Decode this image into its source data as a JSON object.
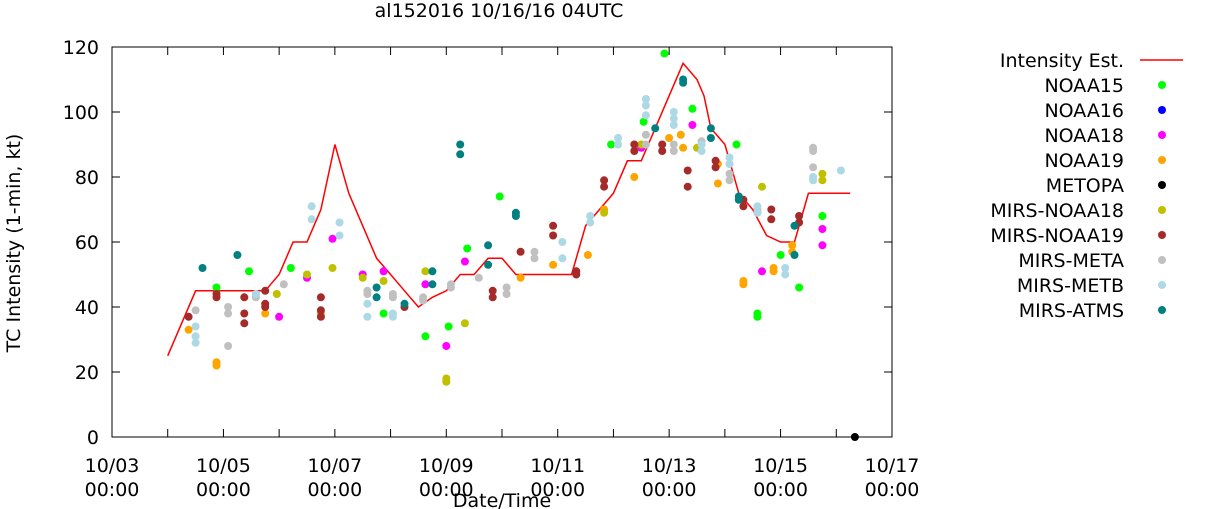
{
  "chart_data": {
    "type": "scatter",
    "title": "al152016 10/16/16 04UTC",
    "xlabel": "Date/Time",
    "ylabel": "TC Intensity (1-min, kt)",
    "xlim": [
      "2016-10-03 00:00",
      "2016-10-17 00:00"
    ],
    "ylim": [
      0,
      120
    ],
    "grid": false,
    "legend_position": "outside-right",
    "x_ticks": [
      {
        "value": "2016-10-03 00:00",
        "line1": "10/03",
        "line2": "00:00"
      },
      {
        "value": "2016-10-05 00:00",
        "line1": "10/05",
        "line2": "00:00"
      },
      {
        "value": "2016-10-07 00:00",
        "line1": "10/07",
        "line2": "00:00"
      },
      {
        "value": "2016-10-09 00:00",
        "line1": "10/09",
        "line2": "00:00"
      },
      {
        "value": "2016-10-11 00:00",
        "line1": "10/11",
        "line2": "00:00"
      },
      {
        "value": "2016-10-13 00:00",
        "line1": "10/13",
        "line2": "00:00"
      },
      {
        "value": "2016-10-15 00:00",
        "line1": "10/15",
        "line2": "00:00"
      },
      {
        "value": "2016-10-17 00:00",
        "line1": "10/17",
        "line2": "00:00"
      }
    ],
    "y_ticks": [
      "0",
      "20",
      "40",
      "60",
      "80",
      "100",
      "120"
    ],
    "series": [
      {
        "name": "Intensity Est.",
        "kind": "line",
        "color": "#ff0000",
        "points": [
          [
            "2016-10-04 00:00",
            25
          ],
          [
            "2016-10-04 12:00",
            45
          ],
          [
            "2016-10-05 18:00",
            45
          ],
          [
            "2016-10-06 00:00",
            50
          ],
          [
            "2016-10-06 06:00",
            60
          ],
          [
            "2016-10-06 12:00",
            60
          ],
          [
            "2016-10-06 18:00",
            70
          ],
          [
            "2016-10-07 00:00",
            90
          ],
          [
            "2016-10-07 06:00",
            75
          ],
          [
            "2016-10-07 12:00",
            65
          ],
          [
            "2016-10-07 18:00",
            55
          ],
          [
            "2016-10-08 00:00",
            50
          ],
          [
            "2016-10-08 06:00",
            45
          ],
          [
            "2016-10-08 12:00",
            40
          ],
          [
            "2016-10-08 18:00",
            43
          ],
          [
            "2016-10-09 00:00",
            45
          ],
          [
            "2016-10-09 06:00",
            50
          ],
          [
            "2016-10-09 12:00",
            50
          ],
          [
            "2016-10-09 18:00",
            55
          ],
          [
            "2016-10-10 00:00",
            55
          ],
          [
            "2016-10-10 06:00",
            50
          ],
          [
            "2016-10-11 06:00",
            50
          ],
          [
            "2016-10-11 12:00",
            65
          ],
          [
            "2016-10-11 18:00",
            70
          ],
          [
            "2016-10-12 00:00",
            75
          ],
          [
            "2016-10-12 06:00",
            85
          ],
          [
            "2016-10-12 12:00",
            85
          ],
          [
            "2016-10-12 18:00",
            95
          ],
          [
            "2016-10-13 00:00",
            105
          ],
          [
            "2016-10-13 06:00",
            115
          ],
          [
            "2016-10-13 12:00",
            110
          ],
          [
            "2016-10-13 15:00",
            105
          ],
          [
            "2016-10-13 18:00",
            95
          ],
          [
            "2016-10-14 00:00",
            90
          ],
          [
            "2016-10-14 06:00",
            75
          ],
          [
            "2016-10-14 12:00",
            70
          ],
          [
            "2016-10-14 18:00",
            62
          ],
          [
            "2016-10-15 00:00",
            60
          ],
          [
            "2016-10-15 06:00",
            60
          ],
          [
            "2016-10-15 12:00",
            75
          ],
          [
            "2016-10-16 06:00",
            75
          ]
        ]
      },
      {
        "name": "NOAA15",
        "kind": "points",
        "color": "#00ff00",
        "points": [
          [
            "2016-10-04 21:00",
            46
          ],
          [
            "2016-10-05 11:00",
            51
          ],
          [
            "2016-10-06 05:00",
            52
          ],
          [
            "2016-10-07 21:00",
            38
          ],
          [
            "2016-10-08 15:00",
            31
          ],
          [
            "2016-10-09 01:00",
            34
          ],
          [
            "2016-10-09 09:00",
            58
          ],
          [
            "2016-10-09 23:00",
            74
          ],
          [
            "2016-10-11 23:00",
            90
          ],
          [
            "2016-10-12 13:00",
            97
          ],
          [
            "2016-10-12 22:00",
            118
          ],
          [
            "2016-10-13 10:00",
            101
          ],
          [
            "2016-10-14 05:00",
            90
          ],
          [
            "2016-10-14 14:00",
            38
          ],
          [
            "2016-10-14 14:00",
            37
          ],
          [
            "2016-10-15 00:00",
            56
          ],
          [
            "2016-10-15 08:00",
            46
          ],
          [
            "2016-10-15 18:00",
            68
          ]
        ]
      },
      {
        "name": "NOAA16",
        "kind": "points",
        "color": "#0000ff",
        "points": []
      },
      {
        "name": "NOAA18",
        "kind": "points",
        "color": "#ff00ff",
        "points": [
          [
            "2016-10-06 00:00",
            37
          ],
          [
            "2016-10-06 12:00",
            49
          ],
          [
            "2016-10-06 23:00",
            61
          ],
          [
            "2016-10-07 12:00",
            50
          ],
          [
            "2016-10-07 21:00",
            51
          ],
          [
            "2016-10-08 15:00",
            47
          ],
          [
            "2016-10-09 00:00",
            28
          ],
          [
            "2016-10-09 08:00",
            54
          ],
          [
            "2016-10-12 12:00",
            89
          ],
          [
            "2016-10-13 10:00",
            96
          ],
          [
            "2016-10-14 16:00",
            51
          ],
          [
            "2016-10-15 18:00",
            64
          ],
          [
            "2016-10-15 18:00",
            59
          ]
        ]
      },
      {
        "name": "NOAA19",
        "kind": "points",
        "color": "#ffa500",
        "points": [
          [
            "2016-10-04 09:00",
            33
          ],
          [
            "2016-10-04 21:00",
            22
          ],
          [
            "2016-10-04 21:00",
            23
          ],
          [
            "2016-10-05 18:00",
            38
          ],
          [
            "2016-10-06 18:00",
            38
          ],
          [
            "2016-10-10 08:00",
            49
          ],
          [
            "2016-10-10 22:00",
            53
          ],
          [
            "2016-10-11 13:00",
            56
          ],
          [
            "2016-10-11 20:00",
            70
          ],
          [
            "2016-10-12 09:00",
            80
          ],
          [
            "2016-10-13 00:00",
            92
          ],
          [
            "2016-10-13 05:00",
            93
          ],
          [
            "2016-10-13 06:00",
            89
          ],
          [
            "2016-10-13 21:00",
            84
          ],
          [
            "2016-10-13 21:00",
            78
          ],
          [
            "2016-10-14 08:00",
            47
          ],
          [
            "2016-10-14 08:00",
            48
          ],
          [
            "2016-10-14 21:00",
            51
          ],
          [
            "2016-10-14 21:00",
            52
          ],
          [
            "2016-10-15 05:00",
            59
          ],
          [
            "2016-10-15 05:00",
            57
          ]
        ]
      },
      {
        "name": "METOPA",
        "kind": "points",
        "color": "#000000",
        "points": [
          [
            "2016-10-16 08:00",
            0
          ]
        ]
      },
      {
        "name": "MIRS-NOAA18",
        "kind": "points",
        "color": "#c0c000",
        "points": [
          [
            "2016-10-05 23:00",
            44
          ],
          [
            "2016-10-06 12:00",
            50
          ],
          [
            "2016-10-06 23:00",
            52
          ],
          [
            "2016-10-07 12:00",
            49
          ],
          [
            "2016-10-07 21:00",
            48
          ],
          [
            "2016-10-08 15:00",
            51
          ],
          [
            "2016-10-09 00:00",
            17
          ],
          [
            "2016-10-09 00:00",
            18
          ],
          [
            "2016-10-09 08:00",
            35
          ],
          [
            "2016-10-11 20:00",
            69
          ],
          [
            "2016-10-12 12:00",
            90
          ],
          [
            "2016-10-13 12:00",
            89
          ],
          [
            "2016-10-14 16:00",
            77
          ],
          [
            "2016-10-15 18:00",
            81
          ],
          [
            "2016-10-15 18:00",
            79
          ]
        ]
      },
      {
        "name": "MIRS-NOAA19",
        "kind": "points",
        "color": "#a52a2a",
        "points": [
          [
            "2016-10-04 09:00",
            37
          ],
          [
            "2016-10-04 21:00",
            43
          ],
          [
            "2016-10-04 21:00",
            44
          ],
          [
            "2016-10-05 09:00",
            35
          ],
          [
            "2016-10-05 09:00",
            38
          ],
          [
            "2016-10-05 09:00",
            43
          ],
          [
            "2016-10-05 18:00",
            40
          ],
          [
            "2016-10-05 18:00",
            41
          ],
          [
            "2016-10-05 18:00",
            45
          ],
          [
            "2016-10-06 18:00",
            37
          ],
          [
            "2016-10-06 18:00",
            39
          ],
          [
            "2016-10-06 18:00",
            43
          ],
          [
            "2016-10-08 06:00",
            40
          ],
          [
            "2016-10-09 20:00",
            43
          ],
          [
            "2016-10-09 20:00",
            45
          ],
          [
            "2016-10-10 08:00",
            57
          ],
          [
            "2016-10-10 22:00",
            62
          ],
          [
            "2016-10-10 22:00",
            65
          ],
          [
            "2016-10-11 08:00",
            50
          ],
          [
            "2016-10-11 08:00",
            51
          ],
          [
            "2016-10-11 20:00",
            79
          ],
          [
            "2016-10-11 20:00",
            77
          ],
          [
            "2016-10-12 09:00",
            90
          ],
          [
            "2016-10-12 09:00",
            88
          ],
          [
            "2016-10-12 21:00",
            88
          ],
          [
            "2016-10-12 21:00",
            90
          ],
          [
            "2016-10-13 08:00",
            82
          ],
          [
            "2016-10-13 08:00",
            77
          ],
          [
            "2016-10-13 20:00",
            85
          ],
          [
            "2016-10-13 20:00",
            83
          ],
          [
            "2016-10-14 08:00",
            71
          ],
          [
            "2016-10-14 08:00",
            73
          ],
          [
            "2016-10-14 20:00",
            70
          ],
          [
            "2016-10-14 20:00",
            67
          ],
          [
            "2016-10-15 08:00",
            68
          ],
          [
            "2016-10-15 08:00",
            66
          ]
        ]
      },
      {
        "name": "MIRS-META",
        "kind": "points",
        "color": "#c0c0c0",
        "points": [
          [
            "2016-10-04 12:00",
            39
          ],
          [
            "2016-10-05 02:00",
            28
          ],
          [
            "2016-10-05 02:00",
            38
          ],
          [
            "2016-10-05 02:00",
            40
          ],
          [
            "2016-10-05 14:00",
            43
          ],
          [
            "2016-10-05 14:00",
            44
          ],
          [
            "2016-10-06 02:00",
            47
          ],
          [
            "2016-10-07 14:00",
            44
          ],
          [
            "2016-10-07 14:00",
            45
          ],
          [
            "2016-10-08 01:00",
            44
          ],
          [
            "2016-10-08 01:00",
            43
          ],
          [
            "2016-10-08 14:00",
            43
          ],
          [
            "2016-10-08 14:00",
            42
          ],
          [
            "2016-10-09 02:00",
            46
          ],
          [
            "2016-10-09 02:00",
            47
          ],
          [
            "2016-10-09 14:00",
            49
          ],
          [
            "2016-10-10 02:00",
            44
          ],
          [
            "2016-10-10 02:00",
            46
          ],
          [
            "2016-10-10 14:00",
            55
          ],
          [
            "2016-10-10 14:00",
            57
          ],
          [
            "2016-10-12 14:00",
            90
          ],
          [
            "2016-10-12 14:00",
            93
          ],
          [
            "2016-10-13 02:00",
            88
          ],
          [
            "2016-10-13 02:00",
            90
          ],
          [
            "2016-10-13 14:00",
            91
          ],
          [
            "2016-10-13 14:00",
            90
          ],
          [
            "2016-10-14 02:00",
            81
          ],
          [
            "2016-10-14 02:00",
            79
          ],
          [
            "2016-10-14 14:00",
            70
          ],
          [
            "2016-10-14 14:00",
            69
          ],
          [
            "2016-10-15 14:00",
            83
          ],
          [
            "2016-10-15 14:00",
            88
          ],
          [
            "2016-10-15 14:00",
            89
          ]
        ]
      },
      {
        "name": "MIRS-METB",
        "kind": "points",
        "color": "#add8e6",
        "points": [
          [
            "2016-10-04 12:00",
            29
          ],
          [
            "2016-10-04 12:00",
            31
          ],
          [
            "2016-10-04 12:00",
            34
          ],
          [
            "2016-10-05 14:00",
            44
          ],
          [
            "2016-10-06 14:00",
            71
          ],
          [
            "2016-10-06 14:00",
            67
          ],
          [
            "2016-10-07 02:00",
            62
          ],
          [
            "2016-10-07 02:00",
            66
          ],
          [
            "2016-10-07 14:00",
            37
          ],
          [
            "2016-10-07 14:00",
            41
          ],
          [
            "2016-10-08 01:00",
            37
          ],
          [
            "2016-10-08 01:00",
            38
          ],
          [
            "2016-10-11 02:00",
            60
          ],
          [
            "2016-10-11 02:00",
            55
          ],
          [
            "2016-10-11 14:00",
            66
          ],
          [
            "2016-10-11 14:00",
            68
          ],
          [
            "2016-10-12 02:00",
            90
          ],
          [
            "2016-10-12 02:00",
            92
          ],
          [
            "2016-10-12 14:00",
            104
          ],
          [
            "2016-10-12 14:00",
            102
          ],
          [
            "2016-10-12 14:00",
            99
          ],
          [
            "2016-10-13 02:00",
            100
          ],
          [
            "2016-10-13 02:00",
            98
          ],
          [
            "2016-10-13 02:00",
            96
          ],
          [
            "2016-10-13 14:00",
            88
          ],
          [
            "2016-10-13 14:00",
            90
          ],
          [
            "2016-10-14 02:00",
            84
          ],
          [
            "2016-10-14 02:00",
            86
          ],
          [
            "2016-10-14 14:00",
            71
          ],
          [
            "2016-10-14 14:00",
            69
          ],
          [
            "2016-10-15 02:00",
            52
          ],
          [
            "2016-10-15 02:00",
            50
          ],
          [
            "2016-10-15 14:00",
            80
          ],
          [
            "2016-10-15 14:00",
            79
          ],
          [
            "2016-10-16 02:00",
            82
          ]
        ]
      },
      {
        "name": "MIRS-ATMS",
        "kind": "points",
        "color": "#008080",
        "points": [
          [
            "2016-10-04 15:00",
            52
          ],
          [
            "2016-10-05 06:00",
            56
          ],
          [
            "2016-10-07 18:00",
            46
          ],
          [
            "2016-10-07 18:00",
            43
          ],
          [
            "2016-10-08 06:00",
            41
          ],
          [
            "2016-10-08 18:00",
            51
          ],
          [
            "2016-10-08 18:00",
            47
          ],
          [
            "2016-10-09 06:00",
            90
          ],
          [
            "2016-10-09 06:00",
            87
          ],
          [
            "2016-10-09 18:00",
            59
          ],
          [
            "2016-10-09 18:00",
            53
          ],
          [
            "2016-10-10 06:00",
            69
          ],
          [
            "2016-10-10 06:00",
            68
          ],
          [
            "2016-10-12 18:00",
            95
          ],
          [
            "2016-10-13 06:00",
            110
          ],
          [
            "2016-10-13 06:00",
            109
          ],
          [
            "2016-10-13 18:00",
            95
          ],
          [
            "2016-10-13 18:00",
            92
          ],
          [
            "2016-10-14 06:00",
            74
          ],
          [
            "2016-10-14 06:00",
            73
          ],
          [
            "2016-10-15 06:00",
            56
          ],
          [
            "2016-10-15 06:00",
            65
          ]
        ]
      }
    ]
  }
}
